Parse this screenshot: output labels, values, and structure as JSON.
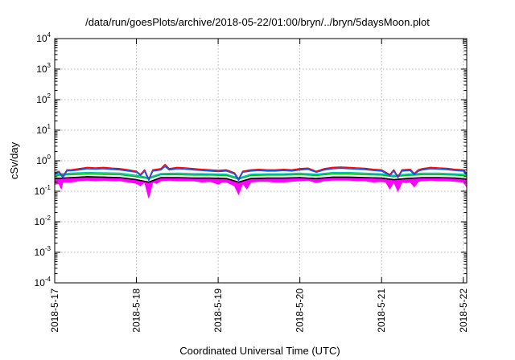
{
  "chart_data": {
    "type": "line",
    "title": "/data/run/goesPlots/archive/2018-05-22/01:00/bryn/../bryn/5daysMoon.plot",
    "xlabel": "Coordinated Universal Time (UTC)",
    "ylabel": "cSv/day",
    "yscale": "log",
    "ylim": [
      0.0001,
      10000
    ],
    "xlim": [
      "2018-05-17T00:00",
      "2018-05-22T01:00"
    ],
    "grid": true,
    "y_ticks": [
      {
        "base": "10",
        "exp": "-4",
        "value": 0.0001
      },
      {
        "base": "10",
        "exp": "-3",
        "value": 0.001
      },
      {
        "base": "10",
        "exp": "-2",
        "value": 0.01
      },
      {
        "base": "10",
        "exp": "-1",
        "value": 0.1
      },
      {
        "base": "10",
        "exp": "0",
        "value": 1
      },
      {
        "base": "10",
        "exp": "1",
        "value": 10
      },
      {
        "base": "10",
        "exp": "2",
        "value": 100
      },
      {
        "base": "10",
        "exp": "3",
        "value": 1000
      },
      {
        "base": "10",
        "exp": "4",
        "value": 10000
      }
    ],
    "x_ticks": [
      "2018-5-17",
      "2018-5-18",
      "2018-5-19",
      "2018-5-20",
      "2018-5-21",
      "2018-5-22"
    ],
    "series": [
      {
        "color": "#ff00ff",
        "filled": true,
        "values": [
          [
            0.0,
            0.17
          ],
          [
            0.05,
            0.18
          ],
          [
            0.08,
            0.12
          ],
          [
            0.1,
            0.2
          ],
          [
            0.2,
            0.2
          ],
          [
            0.3,
            0.22
          ],
          [
            0.4,
            0.23
          ],
          [
            0.5,
            0.22
          ],
          [
            0.6,
            0.23
          ],
          [
            0.7,
            0.22
          ],
          [
            0.8,
            0.22
          ],
          [
            0.9,
            0.2
          ],
          [
            0.95,
            0.19
          ],
          [
            1.0,
            0.18
          ],
          [
            1.05,
            0.15
          ],
          [
            1.1,
            0.2
          ],
          [
            1.15,
            0.06
          ],
          [
            1.2,
            0.2
          ],
          [
            1.25,
            0.18
          ],
          [
            1.3,
            0.22
          ],
          [
            1.4,
            0.23
          ],
          [
            1.5,
            0.22
          ],
          [
            1.6,
            0.22
          ],
          [
            1.7,
            0.22
          ],
          [
            1.8,
            0.2
          ],
          [
            1.9,
            0.21
          ],
          [
            2.0,
            0.17
          ],
          [
            2.05,
            0.2
          ],
          [
            2.1,
            0.2
          ],
          [
            2.2,
            0.15
          ],
          [
            2.25,
            0.08
          ],
          [
            2.3,
            0.18
          ],
          [
            2.35,
            0.12
          ],
          [
            2.4,
            0.2
          ],
          [
            2.5,
            0.21
          ],
          [
            2.6,
            0.21
          ],
          [
            2.7,
            0.2
          ],
          [
            2.8,
            0.2
          ],
          [
            2.9,
            0.21
          ],
          [
            3.0,
            0.22
          ],
          [
            3.1,
            0.23
          ],
          [
            3.2,
            0.19
          ],
          [
            3.3,
            0.22
          ],
          [
            3.4,
            0.23
          ],
          [
            3.5,
            0.23
          ],
          [
            3.6,
            0.23
          ],
          [
            3.7,
            0.22
          ],
          [
            3.8,
            0.22
          ],
          [
            3.9,
            0.2
          ],
          [
            4.0,
            0.21
          ],
          [
            4.05,
            0.2
          ],
          [
            4.1,
            0.12
          ],
          [
            4.15,
            0.2
          ],
          [
            4.2,
            0.1
          ],
          [
            4.25,
            0.2
          ],
          [
            4.3,
            0.19
          ],
          [
            4.35,
            0.2
          ],
          [
            4.4,
            0.14
          ],
          [
            4.45,
            0.21
          ],
          [
            4.5,
            0.22
          ],
          [
            4.6,
            0.23
          ],
          [
            4.7,
            0.22
          ],
          [
            4.8,
            0.22
          ],
          [
            4.9,
            0.21
          ],
          [
            5.0,
            0.2
          ],
          [
            5.04,
            0.14
          ]
        ]
      },
      {
        "color": "#000000",
        "filled": false,
        "values": [
          [
            0.0,
            0.26
          ],
          [
            0.2,
            0.28
          ],
          [
            0.4,
            0.3
          ],
          [
            0.6,
            0.29
          ],
          [
            0.8,
            0.28
          ],
          [
            1.0,
            0.24
          ],
          [
            1.15,
            0.2
          ],
          [
            1.3,
            0.28
          ],
          [
            1.5,
            0.28
          ],
          [
            1.7,
            0.27
          ],
          [
            1.9,
            0.27
          ],
          [
            2.1,
            0.26
          ],
          [
            2.25,
            0.2
          ],
          [
            2.4,
            0.26
          ],
          [
            2.6,
            0.27
          ],
          [
            2.8,
            0.27
          ],
          [
            3.0,
            0.28
          ],
          [
            3.2,
            0.26
          ],
          [
            3.4,
            0.29
          ],
          [
            3.6,
            0.29
          ],
          [
            3.8,
            0.28
          ],
          [
            4.0,
            0.27
          ],
          [
            4.15,
            0.24
          ],
          [
            4.3,
            0.26
          ],
          [
            4.5,
            0.28
          ],
          [
            4.7,
            0.28
          ],
          [
            4.9,
            0.27
          ],
          [
            5.04,
            0.25
          ]
        ]
      },
      {
        "color": "#00bf00",
        "filled": false,
        "values": [
          [
            0.0,
            0.33
          ],
          [
            0.2,
            0.35
          ],
          [
            0.4,
            0.37
          ],
          [
            0.6,
            0.36
          ],
          [
            0.8,
            0.35
          ],
          [
            1.0,
            0.3
          ],
          [
            1.15,
            0.26
          ],
          [
            1.3,
            0.35
          ],
          [
            1.5,
            0.35
          ],
          [
            1.7,
            0.34
          ],
          [
            1.9,
            0.34
          ],
          [
            2.1,
            0.33
          ],
          [
            2.25,
            0.25
          ],
          [
            2.4,
            0.33
          ],
          [
            2.6,
            0.34
          ],
          [
            2.8,
            0.34
          ],
          [
            3.0,
            0.35
          ],
          [
            3.2,
            0.33
          ],
          [
            3.4,
            0.37
          ],
          [
            3.6,
            0.37
          ],
          [
            3.8,
            0.35
          ],
          [
            4.0,
            0.34
          ],
          [
            4.15,
            0.3
          ],
          [
            4.3,
            0.33
          ],
          [
            4.5,
            0.35
          ],
          [
            4.7,
            0.35
          ],
          [
            4.9,
            0.34
          ],
          [
            5.04,
            0.32
          ]
        ]
      },
      {
        "color": "#00bfbf",
        "filled": false,
        "values": [
          [
            0.0,
            0.36
          ],
          [
            0.2,
            0.39
          ],
          [
            0.4,
            0.41
          ],
          [
            0.6,
            0.4
          ],
          [
            0.8,
            0.39
          ],
          [
            1.0,
            0.33
          ],
          [
            1.15,
            0.28
          ],
          [
            1.3,
            0.38
          ],
          [
            1.5,
            0.39
          ],
          [
            1.7,
            0.38
          ],
          [
            1.9,
            0.37
          ],
          [
            2.1,
            0.36
          ],
          [
            2.25,
            0.27
          ],
          [
            2.4,
            0.36
          ],
          [
            2.6,
            0.37
          ],
          [
            2.8,
            0.37
          ],
          [
            3.0,
            0.39
          ],
          [
            3.2,
            0.36
          ],
          [
            3.4,
            0.41
          ],
          [
            3.6,
            0.41
          ],
          [
            3.8,
            0.39
          ],
          [
            4.0,
            0.37
          ],
          [
            4.15,
            0.33
          ],
          [
            4.3,
            0.36
          ],
          [
            4.5,
            0.39
          ],
          [
            4.7,
            0.39
          ],
          [
            4.9,
            0.37
          ],
          [
            5.04,
            0.35
          ]
        ]
      },
      {
        "color": "#ff0000",
        "filled": false,
        "values": [
          [
            0.0,
            0.4
          ],
          [
            0.05,
            0.45
          ],
          [
            0.1,
            0.3
          ],
          [
            0.15,
            0.5
          ],
          [
            0.2,
            0.5
          ],
          [
            0.3,
            0.55
          ],
          [
            0.4,
            0.6
          ],
          [
            0.5,
            0.58
          ],
          [
            0.6,
            0.6
          ],
          [
            0.7,
            0.57
          ],
          [
            0.8,
            0.55
          ],
          [
            0.9,
            0.5
          ],
          [
            1.0,
            0.45
          ],
          [
            1.05,
            0.35
          ],
          [
            1.1,
            0.5
          ],
          [
            1.15,
            0.25
          ],
          [
            1.2,
            0.5
          ],
          [
            1.3,
            0.55
          ],
          [
            1.35,
            0.75
          ],
          [
            1.4,
            0.55
          ],
          [
            1.5,
            0.6
          ],
          [
            1.6,
            0.58
          ],
          [
            1.7,
            0.55
          ],
          [
            1.8,
            0.52
          ],
          [
            1.9,
            0.5
          ],
          [
            2.0,
            0.48
          ],
          [
            2.1,
            0.5
          ],
          [
            2.2,
            0.4
          ],
          [
            2.25,
            0.25
          ],
          [
            2.3,
            0.45
          ],
          [
            2.4,
            0.5
          ],
          [
            2.5,
            0.52
          ],
          [
            2.6,
            0.5
          ],
          [
            2.7,
            0.5
          ],
          [
            2.8,
            0.52
          ],
          [
            2.9,
            0.5
          ],
          [
            3.0,
            0.55
          ],
          [
            3.1,
            0.57
          ],
          [
            3.2,
            0.45
          ],
          [
            3.3,
            0.55
          ],
          [
            3.4,
            0.6
          ],
          [
            3.5,
            0.62
          ],
          [
            3.6,
            0.6
          ],
          [
            3.7,
            0.58
          ],
          [
            3.8,
            0.56
          ],
          [
            3.9,
            0.52
          ],
          [
            4.0,
            0.5
          ],
          [
            4.1,
            0.35
          ],
          [
            4.15,
            0.5
          ],
          [
            4.2,
            0.3
          ],
          [
            4.25,
            0.5
          ],
          [
            4.35,
            0.52
          ],
          [
            4.4,
            0.38
          ],
          [
            4.45,
            0.5
          ],
          [
            4.5,
            0.55
          ],
          [
            4.6,
            0.6
          ],
          [
            4.7,
            0.58
          ],
          [
            4.8,
            0.56
          ],
          [
            4.9,
            0.52
          ],
          [
            5.0,
            0.5
          ],
          [
            5.04,
            0.38
          ]
        ]
      },
      {
        "color": "#0060ff",
        "filled": false,
        "values": [
          [
            0.0,
            0.37
          ],
          [
            0.05,
            0.42
          ],
          [
            0.1,
            0.28
          ],
          [
            0.15,
            0.47
          ],
          [
            0.2,
            0.47
          ],
          [
            0.3,
            0.5
          ],
          [
            0.4,
            0.55
          ],
          [
            0.5,
            0.53
          ],
          [
            0.6,
            0.55
          ],
          [
            0.7,
            0.52
          ],
          [
            0.8,
            0.5
          ],
          [
            0.9,
            0.46
          ],
          [
            1.0,
            0.42
          ],
          [
            1.05,
            0.33
          ],
          [
            1.1,
            0.46
          ],
          [
            1.15,
            0.23
          ],
          [
            1.2,
            0.46
          ],
          [
            1.3,
            0.5
          ],
          [
            1.35,
            0.65
          ],
          [
            1.4,
            0.5
          ],
          [
            1.5,
            0.55
          ],
          [
            1.6,
            0.53
          ],
          [
            1.7,
            0.5
          ],
          [
            1.8,
            0.48
          ],
          [
            1.9,
            0.46
          ],
          [
            2.0,
            0.44
          ],
          [
            2.1,
            0.46
          ],
          [
            2.2,
            0.37
          ],
          [
            2.25,
            0.23
          ],
          [
            2.3,
            0.42
          ],
          [
            2.4,
            0.46
          ],
          [
            2.5,
            0.48
          ],
          [
            2.6,
            0.46
          ],
          [
            2.7,
            0.46
          ],
          [
            2.8,
            0.48
          ],
          [
            2.9,
            0.46
          ],
          [
            3.0,
            0.5
          ],
          [
            3.1,
            0.52
          ],
          [
            3.2,
            0.42
          ],
          [
            3.3,
            0.5
          ],
          [
            3.4,
            0.55
          ],
          [
            3.5,
            0.57
          ],
          [
            3.6,
            0.55
          ],
          [
            3.7,
            0.53
          ],
          [
            3.8,
            0.51
          ],
          [
            3.9,
            0.48
          ],
          [
            4.0,
            0.46
          ],
          [
            4.1,
            0.33
          ],
          [
            4.15,
            0.46
          ],
          [
            4.2,
            0.28
          ],
          [
            4.25,
            0.46
          ],
          [
            4.35,
            0.48
          ],
          [
            4.4,
            0.35
          ],
          [
            4.45,
            0.46
          ],
          [
            4.5,
            0.5
          ],
          [
            4.6,
            0.55
          ],
          [
            4.7,
            0.53
          ],
          [
            4.8,
            0.51
          ],
          [
            4.9,
            0.48
          ],
          [
            5.0,
            0.46
          ],
          [
            5.04,
            0.35
          ]
        ]
      }
    ]
  }
}
